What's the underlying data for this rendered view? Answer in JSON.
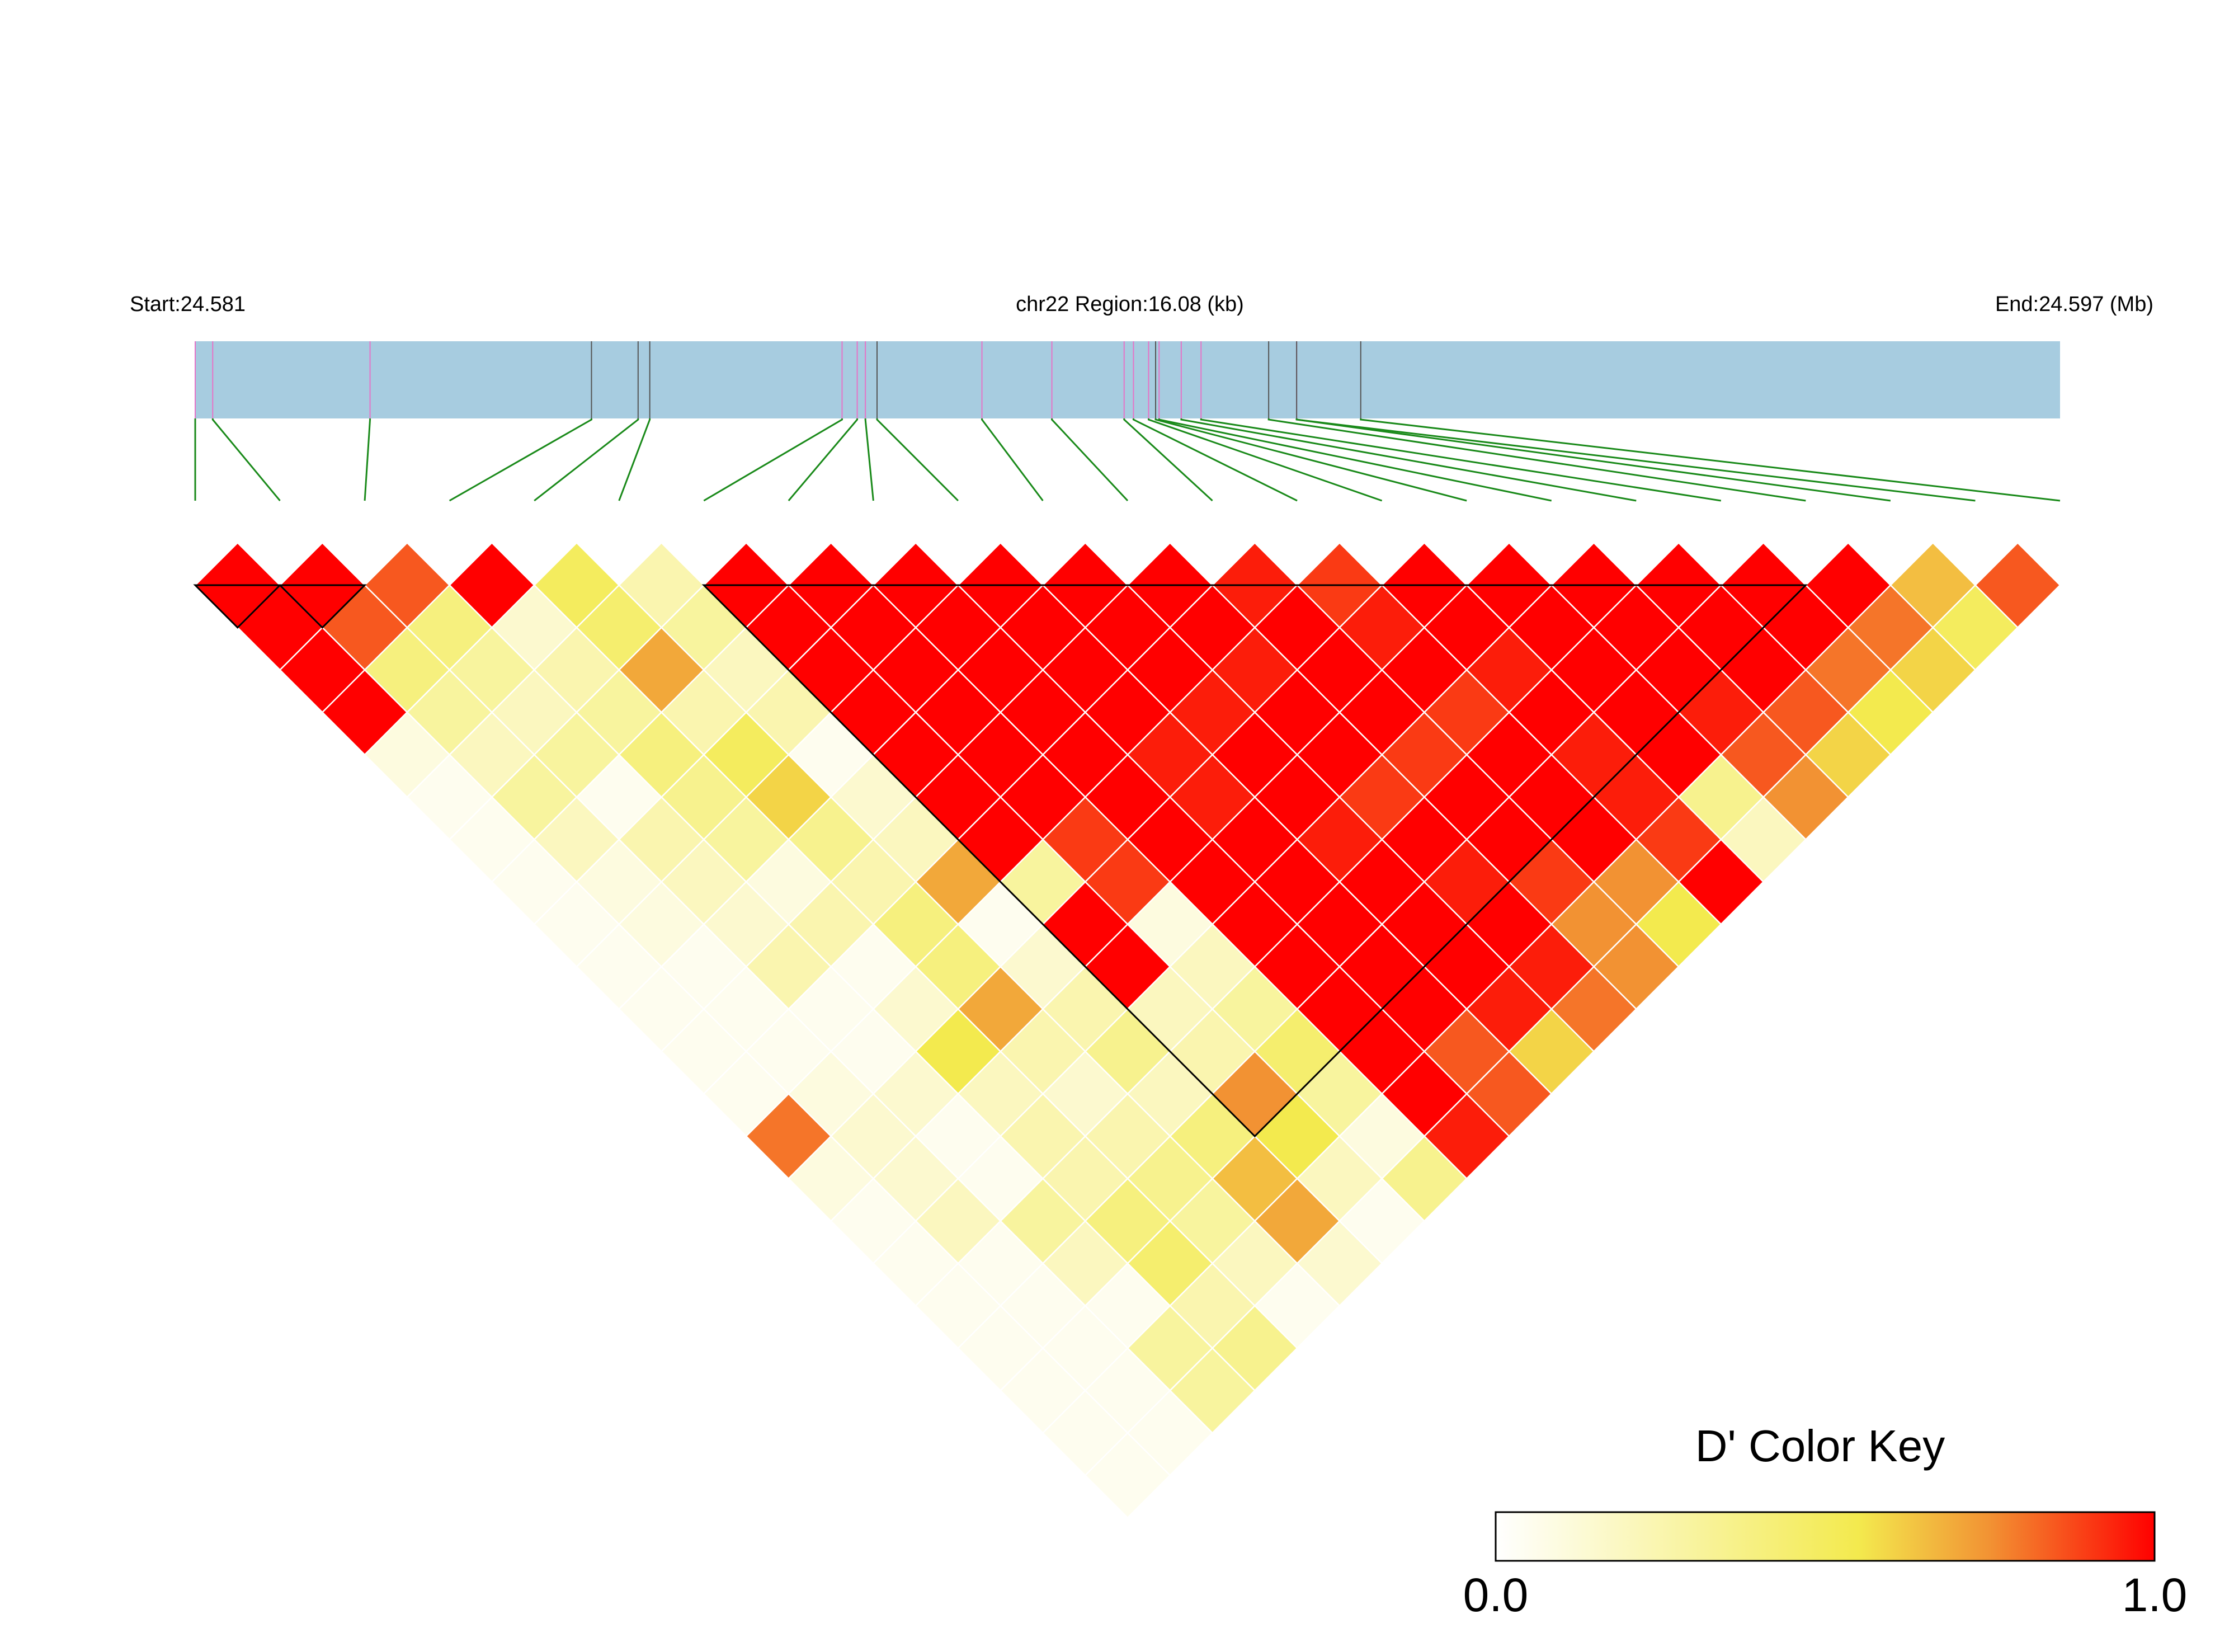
{
  "chart_data": {
    "type": "heatmap",
    "subtype": "ld-triangle",
    "header": {
      "start_label": "Start:24.581",
      "region_label": "chr22 Region:16.08 (kb)",
      "end_label": "End:24.597 (Mb)"
    },
    "region_mb": [
      24.581,
      24.597
    ],
    "snp_positions_mb": [
      24.581,
      24.58115,
      24.5825,
      24.5844,
      24.5848,
      24.5849,
      24.58655,
      24.58668,
      24.58675,
      24.58685,
      24.58775,
      24.58835,
      24.58897,
      24.58905,
      24.58918,
      24.58924,
      24.58927,
      24.58946,
      24.58963,
      24.59021,
      24.59045,
      24.59045,
      24.591
    ],
    "snp_line_colors": [
      "#e673c7",
      "#e673c7",
      "#e673c7",
      "#555555",
      "#555555",
      "#555555",
      "#e673c7",
      "#e673c7",
      "#e673c7",
      "#555555",
      "#e673c7",
      "#e673c7",
      "#e673c7",
      "#e673c7",
      "#e673c7",
      "#555555",
      "#e673c7",
      "#e673c7",
      "#e673c7",
      "#555555",
      "#e673c7",
      "#555555",
      "#555555"
    ],
    "n_snps": 23,
    "d_prime_diagonals": [
      [
        1.0,
        1.0,
        0.85,
        1.0,
        0.5,
        0.25,
        1.0,
        1.0,
        1.0,
        1.0,
        1.0,
        1.0,
        0.95,
        0.9,
        1.0,
        1.0,
        1.0,
        1.0,
        1.0,
        1.0,
        0.65,
        0.85
      ],
      [
        1.0,
        0.85,
        0.4,
        0.15,
        0.45,
        0.3,
        1.0,
        1.0,
        1.0,
        1.0,
        1.0,
        1.0,
        1.0,
        0.95,
        1.0,
        1.0,
        1.0,
        1.0,
        1.0,
        0.8,
        0.5
      ],
      [
        1.0,
        0.4,
        0.3,
        0.25,
        0.7,
        0.2,
        1.0,
        1.0,
        1.0,
        1.0,
        1.0,
        0.95,
        1.0,
        1.0,
        0.95,
        1.0,
        1.0,
        1.0,
        0.8,
        0.6
      ],
      [
        1.0,
        0.3,
        0.2,
        0.3,
        0.25,
        0.25,
        1.0,
        1.0,
        1.0,
        1.0,
        0.95,
        1.0,
        1.0,
        0.9,
        1.0,
        1.0,
        0.95,
        0.85,
        0.55
      ],
      [
        0.1,
        0.2,
        0.3,
        0.4,
        0.5,
        0.05,
        1.0,
        1.0,
        1.0,
        0.95,
        1.0,
        1.0,
        0.9,
        1.0,
        0.95,
        1.0,
        0.85,
        0.6
      ],
      [
        0.05,
        0.3,
        0.05,
        0.35,
        0.6,
        0.15,
        1.0,
        1.0,
        1.0,
        0.95,
        1.0,
        0.9,
        1.0,
        1.0,
        0.95,
        0.35,
        0.75
      ],
      [
        0.05,
        0.2,
        0.25,
        0.3,
        0.35,
        0.2,
        1.0,
        0.9,
        1.0,
        1.0,
        0.95,
        1.0,
        1.0,
        1.0,
        0.9,
        0.2
      ],
      [
        0.05,
        0.1,
        0.2,
        0.1,
        0.25,
        0.7,
        0.3,
        0.9,
        1.0,
        1.0,
        1.0,
        0.95,
        0.9,
        0.75,
        1.0
      ],
      [
        0.05,
        0.1,
        0.15,
        0.25,
        0.4,
        0.05,
        1.0,
        0.1,
        1.0,
        1.0,
        1.0,
        1.0,
        0.75,
        0.55
      ],
      [
        0.05,
        0.05,
        0.25,
        0.05,
        0.4,
        0.15,
        1.0,
        0.2,
        1.0,
        1.0,
        1.0,
        0.95,
        0.75
      ],
      [
        0.05,
        0.05,
        0.05,
        0.15,
        0.7,
        0.25,
        0.2,
        0.3,
        1.0,
        1.0,
        0.95,
        0.8
      ],
      [
        0.05,
        0.05,
        0.05,
        0.55,
        0.25,
        0.35,
        0.25,
        0.45,
        1.0,
        0.85,
        0.6
      ],
      [
        0.05,
        0.1,
        0.15,
        0.2,
        0.15,
        0.2,
        0.75,
        0.3,
        1.0,
        0.85
      ],
      [
        0.8,
        0.15,
        0.05,
        0.25,
        0.25,
        0.4,
        0.55,
        0.1,
        0.95
      ],
      [
        0.1,
        0.15,
        0.05,
        0.25,
        0.35,
        0.65,
        0.2,
        0.35
      ],
      [
        0.05,
        0.2,
        0.3,
        0.4,
        0.3,
        0.7,
        0.05
      ],
      [
        0.05,
        0.05,
        0.2,
        0.45,
        0.2,
        0.15
      ],
      [
        0.05,
        0.05,
        0.05,
        0.25,
        0.05
      ],
      [
        0.05,
        0.05,
        0.3,
        0.35
      ],
      [
        0.05,
        0.05,
        0.3
      ],
      [
        0.05,
        0.05
      ],
      [
        0.05
      ]
    ],
    "ld_blocks": [
      [
        1,
        2
      ],
      [
        2,
        3
      ],
      [
        7,
        20
      ]
    ],
    "color_key": {
      "title": "D' Color Key",
      "min_label": "0.0",
      "max_label": "1.0",
      "stops": [
        "#ffffff",
        "#f3ea4e",
        "#f29233",
        "#ff0000"
      ]
    },
    "colors": {
      "region_bar": "#a7cce0",
      "connector": "#1a8a1a",
      "cell_border": "#ffffff",
      "block_outline": "#000000"
    }
  }
}
